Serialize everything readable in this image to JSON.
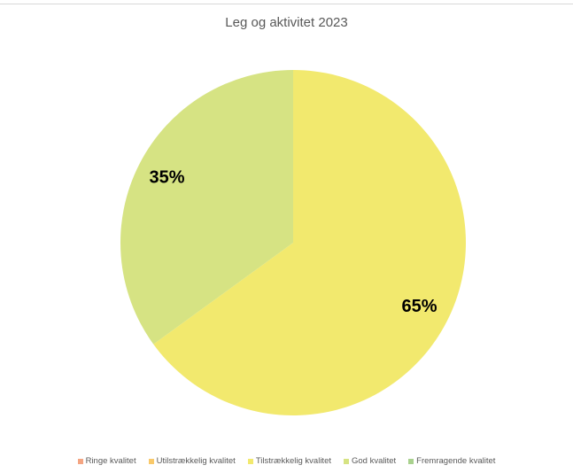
{
  "chart_data": {
    "type": "pie",
    "title": "Leg og aktivitet 2023",
    "categories": [
      "Ringe kvalitet",
      "Utilstrækkelig kvalitet",
      "Tilstrækkelig kvalitet",
      "God kvalitet",
      "Fremragende kvalitet"
    ],
    "values": [
      0,
      0,
      65,
      35,
      0
    ],
    "data_labels": [
      "",
      "",
      "65%",
      "35%",
      ""
    ],
    "colors": [
      "#f4a582",
      "#f9c96a",
      "#f2e96e",
      "#d6e383",
      "#a9d18e"
    ],
    "legend_position": "bottom"
  }
}
